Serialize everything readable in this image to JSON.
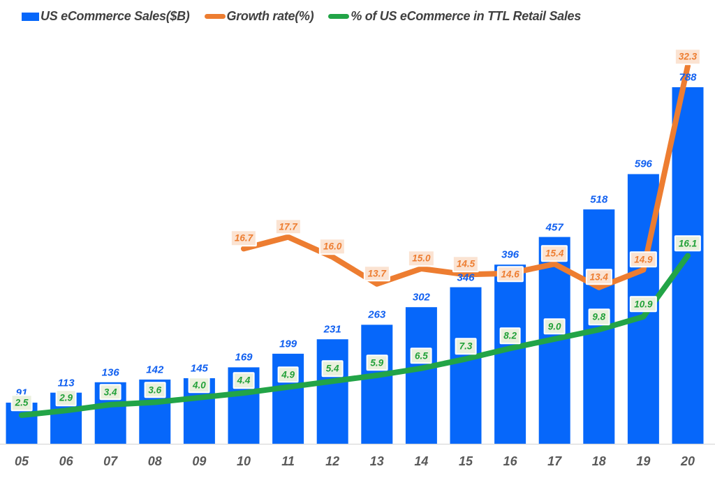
{
  "legend": [
    {
      "label": "US eCommerce Sales($B)",
      "color": "#0667FA",
      "swatch": "square"
    },
    {
      "label": "Growth rate(%)",
      "color": "#ED7D31",
      "swatch": "line"
    },
    {
      "label": "% of US eCommerce in TTL Retail Sales",
      "color": "#22A447",
      "swatch": "line"
    }
  ],
  "colors": {
    "bar_blue": "#0667FA",
    "bar_label_text": "#1160F0",
    "orange_line": "#ED7D31",
    "orange_label_text": "#ED7D31",
    "orange_label_bg": "#FBE3D2",
    "green_line": "#22A447",
    "green_label_text": "#21A038",
    "green_label_bg": "#EAF0DD",
    "axis_line": "#D9D9D9",
    "x_axis_label_text": "#595959",
    "legend_text": "#404040",
    "background": "#FFFFFF"
  },
  "chart_data": {
    "type": "combo",
    "title": "",
    "categories": [
      "05",
      "06",
      "07",
      "08",
      "09",
      "10",
      "11",
      "12",
      "13",
      "14",
      "15",
      "16",
      "17",
      "18",
      "19",
      "20"
    ],
    "series": [
      {
        "name": "US eCommerce Sales($B)",
        "type": "bar",
        "axis": "primary",
        "unit": "$B",
        "color": "#0667FA",
        "values": [
          91,
          113,
          136,
          142,
          145,
          169,
          199,
          231,
          263,
          302,
          346,
          396,
          457,
          518,
          596,
          788
        ]
      },
      {
        "name": "Growth rate(%)",
        "type": "line",
        "axis": "secondary",
        "unit": "%",
        "color": "#ED7D31",
        "values": [
          null,
          null,
          null,
          null,
          null,
          16.7,
          17.7,
          16.0,
          13.7,
          15.0,
          14.5,
          14.6,
          15.4,
          13.4,
          14.9,
          32.3
        ]
      },
      {
        "name": "% of US eCommerce in TTL Retail Sales",
        "type": "line",
        "axis": "secondary",
        "unit": "%",
        "color": "#22A447",
        "values": [
          2.5,
          2.9,
          3.4,
          3.6,
          4.0,
          4.4,
          4.9,
          5.4,
          5.9,
          6.5,
          7.3,
          8.2,
          9.0,
          9.8,
          10.9,
          16.1
        ]
      }
    ],
    "xlabel": "",
    "ylabel": "",
    "grid": false,
    "y_axes_visible": false,
    "legend_position": "top-left",
    "data_labels_visible": true
  }
}
